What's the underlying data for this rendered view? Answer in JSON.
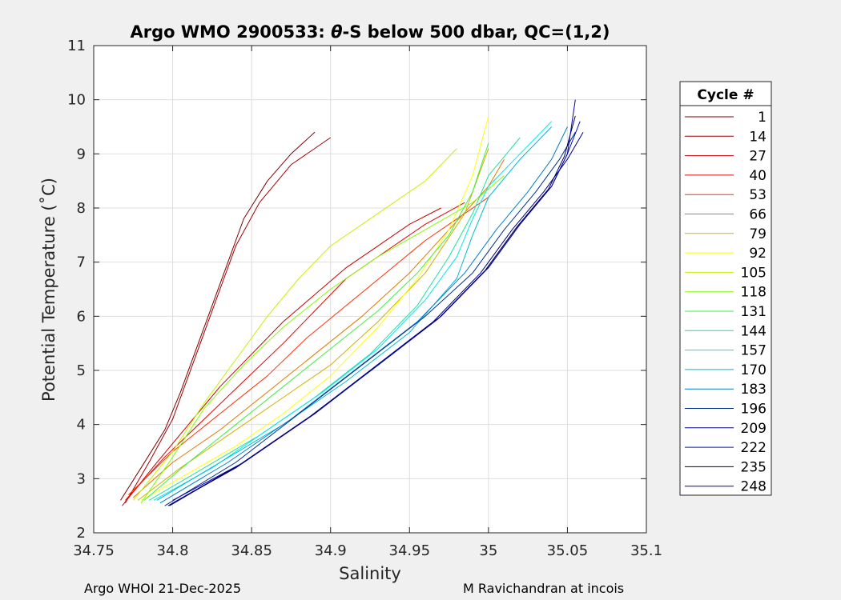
{
  "chart_data": {
    "type": "line",
    "title_prefix": "Argo WMO 2900533: ",
    "title_theta": "θ",
    "title_suffix": "-S below 500 dbar,  QC=(1,2)",
    "xlabel": "Salinity",
    "ylabel": "Potential Temperature (˚C)",
    "xlim": [
      34.75,
      35.1
    ],
    "ylim": [
      2,
      11
    ],
    "xticks": [
      34.75,
      34.8,
      34.85,
      34.9,
      34.95,
      35,
      35.05,
      35.1
    ],
    "xtick_labels": [
      "34.75",
      "34.8",
      "34.85",
      "34.9",
      "34.95",
      "35",
      "35.05",
      "35.1"
    ],
    "yticks": [
      2,
      3,
      4,
      5,
      6,
      7,
      8,
      9,
      10,
      11
    ],
    "ytick_labels": [
      "2",
      "3",
      "4",
      "5",
      "6",
      "7",
      "8",
      "9",
      "10",
      "11"
    ],
    "grid": true,
    "legend_title": "Cycle #",
    "legend_placement": "outside-right",
    "series": [
      {
        "name": "1",
        "color": "#800000",
        "s": [
          34.767,
          34.78,
          34.795,
          34.805,
          34.815,
          34.825,
          34.835,
          34.845,
          34.86,
          34.875,
          34.89
        ],
        "t": [
          2.6,
          3.2,
          3.9,
          4.6,
          5.4,
          6.2,
          7.0,
          7.8,
          8.5,
          9.0,
          9.4
        ]
      },
      {
        "name": "14",
        "color": "#a00000",
        "s": [
          34.77,
          34.785,
          34.8,
          34.81,
          34.82,
          34.83,
          34.84,
          34.855,
          34.875,
          34.9
        ],
        "t": [
          2.55,
          3.3,
          4.1,
          4.9,
          5.7,
          6.5,
          7.3,
          8.1,
          8.8,
          9.3
        ]
      },
      {
        "name": "27",
        "color": "#c80000",
        "s": [
          34.768,
          34.79,
          34.81,
          34.83,
          34.85,
          34.87,
          34.89,
          34.91,
          34.93,
          34.95,
          34.97
        ],
        "t": [
          2.5,
          3.3,
          4.0,
          4.7,
          5.3,
          5.9,
          6.4,
          6.9,
          7.3,
          7.7,
          8.0
        ]
      },
      {
        "name": "40",
        "color": "#e60000",
        "s": [
          34.77,
          34.795,
          34.82,
          34.845,
          34.87,
          34.89,
          34.91,
          34.935,
          34.96,
          34.985
        ],
        "t": [
          2.6,
          3.4,
          4.1,
          4.8,
          5.5,
          6.1,
          6.7,
          7.2,
          7.7,
          8.1
        ]
      },
      {
        "name": "53",
        "color": "#ff3000",
        "s": [
          34.772,
          34.8,
          34.83,
          34.86,
          34.885,
          34.91,
          34.935,
          34.96,
          34.985,
          35.0
        ],
        "t": [
          2.7,
          3.5,
          4.2,
          4.9,
          5.6,
          6.2,
          6.8,
          7.4,
          7.9,
          8.2
        ]
      },
      {
        "name": "66",
        "color": "#e07800",
        "s": [
          34.775,
          34.8,
          34.83,
          34.86,
          34.89,
          34.92,
          34.95,
          34.975,
          35.0,
          35.01
        ],
        "t": [
          2.65,
          3.3,
          3.9,
          4.6,
          5.3,
          6.0,
          6.8,
          7.6,
          8.4,
          8.9
        ]
      },
      {
        "name": "79",
        "color": "#d4b000",
        "s": [
          34.778,
          34.805,
          34.835,
          34.865,
          34.9,
          34.93,
          34.96,
          34.985,
          35.0
        ],
        "t": [
          2.6,
          3.2,
          3.8,
          4.4,
          5.1,
          5.9,
          6.8,
          7.9,
          9.1
        ]
      },
      {
        "name": "92",
        "color": "#ffff00",
        "s": [
          34.78,
          34.81,
          34.84,
          34.87,
          34.9,
          34.93,
          34.955,
          34.975,
          34.99,
          35.0
        ],
        "t": [
          2.6,
          3.1,
          3.6,
          4.2,
          4.9,
          5.8,
          6.7,
          7.6,
          8.6,
          9.7
        ]
      },
      {
        "name": "105",
        "color": "#c8f000",
        "s": [
          34.775,
          34.8,
          34.82,
          34.84,
          34.86,
          34.88,
          34.9,
          34.93,
          34.96,
          34.98
        ],
        "t": [
          2.6,
          3.5,
          4.4,
          5.2,
          6.0,
          6.7,
          7.3,
          7.9,
          8.5,
          9.1
        ]
      },
      {
        "name": "118",
        "color": "#80ff00",
        "s": [
          34.78,
          34.8,
          34.82,
          34.845,
          34.87,
          34.9,
          34.93,
          34.96,
          34.99,
          35.01
        ],
        "t": [
          2.55,
          3.4,
          4.3,
          5.1,
          5.8,
          6.5,
          7.1,
          7.6,
          8.1,
          8.6
        ]
      },
      {
        "name": "131",
        "color": "#40f040",
        "s": [
          34.782,
          34.81,
          34.84,
          34.87,
          34.9,
          34.93,
          34.955,
          34.975,
          34.99,
          35.0
        ],
        "t": [
          2.6,
          3.3,
          4.0,
          4.7,
          5.4,
          6.1,
          6.8,
          7.5,
          8.3,
          9.2
        ]
      },
      {
        "name": "144",
        "color": "#20e0a0",
        "s": [
          34.785,
          34.82,
          34.855,
          34.89,
          34.925,
          34.955,
          34.975,
          34.99,
          35.0,
          35.02
        ],
        "t": [
          2.6,
          3.2,
          3.8,
          4.5,
          5.3,
          6.2,
          7.1,
          7.9,
          8.6,
          9.3
        ]
      },
      {
        "name": "157",
        "color": "#00e8e8",
        "s": [
          34.788,
          34.825,
          34.86,
          34.895,
          34.93,
          34.96,
          34.98,
          34.99,
          35.0,
          35.02,
          35.04
        ],
        "t": [
          2.6,
          3.2,
          3.9,
          4.6,
          5.4,
          6.3,
          7.1,
          7.8,
          8.4,
          9.0,
          9.6
        ]
      },
      {
        "name": "170",
        "color": "#00b8d8",
        "s": [
          34.79,
          34.83,
          34.87,
          34.91,
          34.95,
          34.98,
          34.99,
          35.0,
          35.02,
          35.04
        ],
        "t": [
          2.6,
          3.3,
          4.0,
          4.8,
          5.7,
          6.7,
          7.5,
          8.2,
          8.9,
          9.5
        ]
      },
      {
        "name": "183",
        "color": "#0080c8",
        "s": [
          34.792,
          34.835,
          34.875,
          34.915,
          34.955,
          34.985,
          35.005,
          35.025,
          35.04,
          35.05
        ],
        "t": [
          2.55,
          3.3,
          4.1,
          5.0,
          5.9,
          6.8,
          7.6,
          8.3,
          8.9,
          9.5
        ]
      },
      {
        "name": "196",
        "color": "#003090",
        "s": [
          34.795,
          34.84,
          34.88,
          34.92,
          34.96,
          34.99,
          35.01,
          35.03,
          35.045,
          35.055
        ],
        "t": [
          2.5,
          3.3,
          4.2,
          5.1,
          6.0,
          6.8,
          7.6,
          8.3,
          8.9,
          9.4
        ]
      },
      {
        "name": "209",
        "color": "#000080",
        "s": [
          34.797,
          34.84,
          34.885,
          34.925,
          34.965,
          34.995,
          35.015,
          35.035,
          35.05,
          35.06
        ],
        "t": [
          2.5,
          3.2,
          4.1,
          5.0,
          5.9,
          6.8,
          7.6,
          8.3,
          8.9,
          9.4
        ]
      },
      {
        "name": "222",
        "color": "#0010d0",
        "s": [
          34.8,
          34.845,
          34.89,
          34.93,
          34.97,
          35.0,
          35.02,
          35.04,
          35.05,
          35.058
        ],
        "t": [
          2.55,
          3.3,
          4.2,
          5.1,
          6.0,
          6.9,
          7.7,
          8.4,
          9.0,
          9.6
        ]
      },
      {
        "name": "235",
        "color": "#000050",
        "s": [
          34.798,
          34.842,
          34.887,
          34.928,
          34.968,
          34.998,
          35.018,
          35.038,
          35.048,
          35.055
        ],
        "t": [
          2.5,
          3.25,
          4.15,
          5.05,
          5.95,
          6.85,
          7.65,
          8.35,
          8.95,
          9.7
        ]
      },
      {
        "name": "248",
        "color": "#0000a8",
        "s": [
          34.8,
          34.845,
          34.89,
          34.93,
          34.97,
          35.0,
          35.02,
          35.04,
          35.05,
          35.055
        ],
        "t": [
          2.6,
          3.3,
          4.2,
          5.1,
          6.0,
          6.9,
          7.7,
          8.4,
          9.0,
          10.0
        ]
      }
    ]
  },
  "footer": {
    "left": "Argo WHOI 21-Dec-2025",
    "right": "M Ravichandran at incois"
  }
}
